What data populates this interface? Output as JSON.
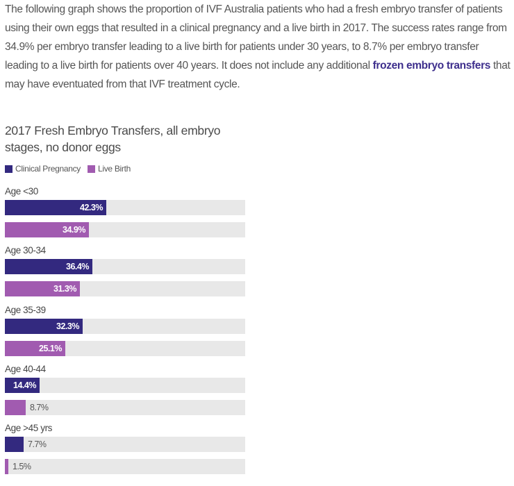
{
  "intro": {
    "text_before_link": "The following graph shows the proportion of IVF Australia patients who had a fresh embryo transfer of patients using their own eggs that resulted in a clinical pregnancy and a live birth in 2017. The success rates range from 34.9% per embryo transfer leading to a live birth for patients under 30 years, to 8.7% per embryo transfer leading to a live birth for patients over 40 years. It does not include any additional ",
    "link_text": "frozen embryo transfers",
    "text_after_link": " that may have eventuated from that IVF treatment cycle."
  },
  "colors": {
    "clinical": "#33297f",
    "live": "#a15bb0",
    "track": "#e8e8e8",
    "link": "#3d2e8c"
  },
  "chart_data": {
    "type": "bar",
    "orientation": "horizontal",
    "title": "2017 Fresh Embryo Transfers, all embryo stages, no donor eggs",
    "xlim": [
      0,
      100
    ],
    "legend_position": "top-left",
    "categories": [
      "Age <30",
      "Age 30-34",
      "Age 35-39",
      "Age 40-44",
      "Age >45 yrs"
    ],
    "series": [
      {
        "name": "Clinical Pregnancy",
        "values": [
          42.3,
          36.4,
          32.3,
          14.4,
          7.7
        ],
        "labels": [
          "42.3%",
          "36.4%",
          "32.3%",
          "14.4%",
          "7.7%"
        ]
      },
      {
        "name": "Live Birth",
        "values": [
          34.9,
          31.3,
          25.1,
          8.7,
          1.5
        ],
        "labels": [
          "34.9%",
          "31.3%",
          "25.1%",
          "8.7%",
          "1.5%"
        ]
      }
    ]
  }
}
